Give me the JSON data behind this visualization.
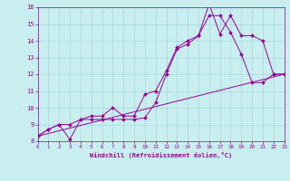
{
  "xlabel": "Windchill (Refroidissement éolien,°C)",
  "bg_color": "#c8eef0",
  "grid_color": "#a8d8dc",
  "line_color": "#990099",
  "xmin": 0,
  "xmax": 23,
  "ymin": 8,
  "ymax": 16,
  "line1_x": [
    0,
    1,
    2,
    3,
    4,
    5,
    6,
    7,
    8,
    9,
    10,
    11,
    12,
    13,
    14,
    15,
    16,
    17,
    18,
    19,
    20,
    21,
    22,
    23
  ],
  "line1_y": [
    8.3,
    8.7,
    9.0,
    9.0,
    9.3,
    9.3,
    9.3,
    9.3,
    9.3,
    9.3,
    9.4,
    10.3,
    12.0,
    13.5,
    13.8,
    14.3,
    16.2,
    14.4,
    15.5,
    14.3,
    14.3,
    14.0,
    12.0,
    12.0
  ],
  "line2_x": [
    0,
    1,
    2,
    3,
    4,
    5,
    6,
    7,
    8,
    9,
    10,
    11,
    12,
    13,
    14,
    15,
    16,
    17,
    18,
    19,
    20,
    21,
    22,
    23
  ],
  "line2_y": [
    8.3,
    8.7,
    9.0,
    8.1,
    9.3,
    9.5,
    9.5,
    10.0,
    9.5,
    9.5,
    10.8,
    11.0,
    12.2,
    13.6,
    14.0,
    14.3,
    15.5,
    15.5,
    14.5,
    13.2,
    11.5,
    11.5,
    12.0,
    12.0
  ],
  "line3_x": [
    0,
    23
  ],
  "line3_y": [
    8.3,
    12.0
  ]
}
